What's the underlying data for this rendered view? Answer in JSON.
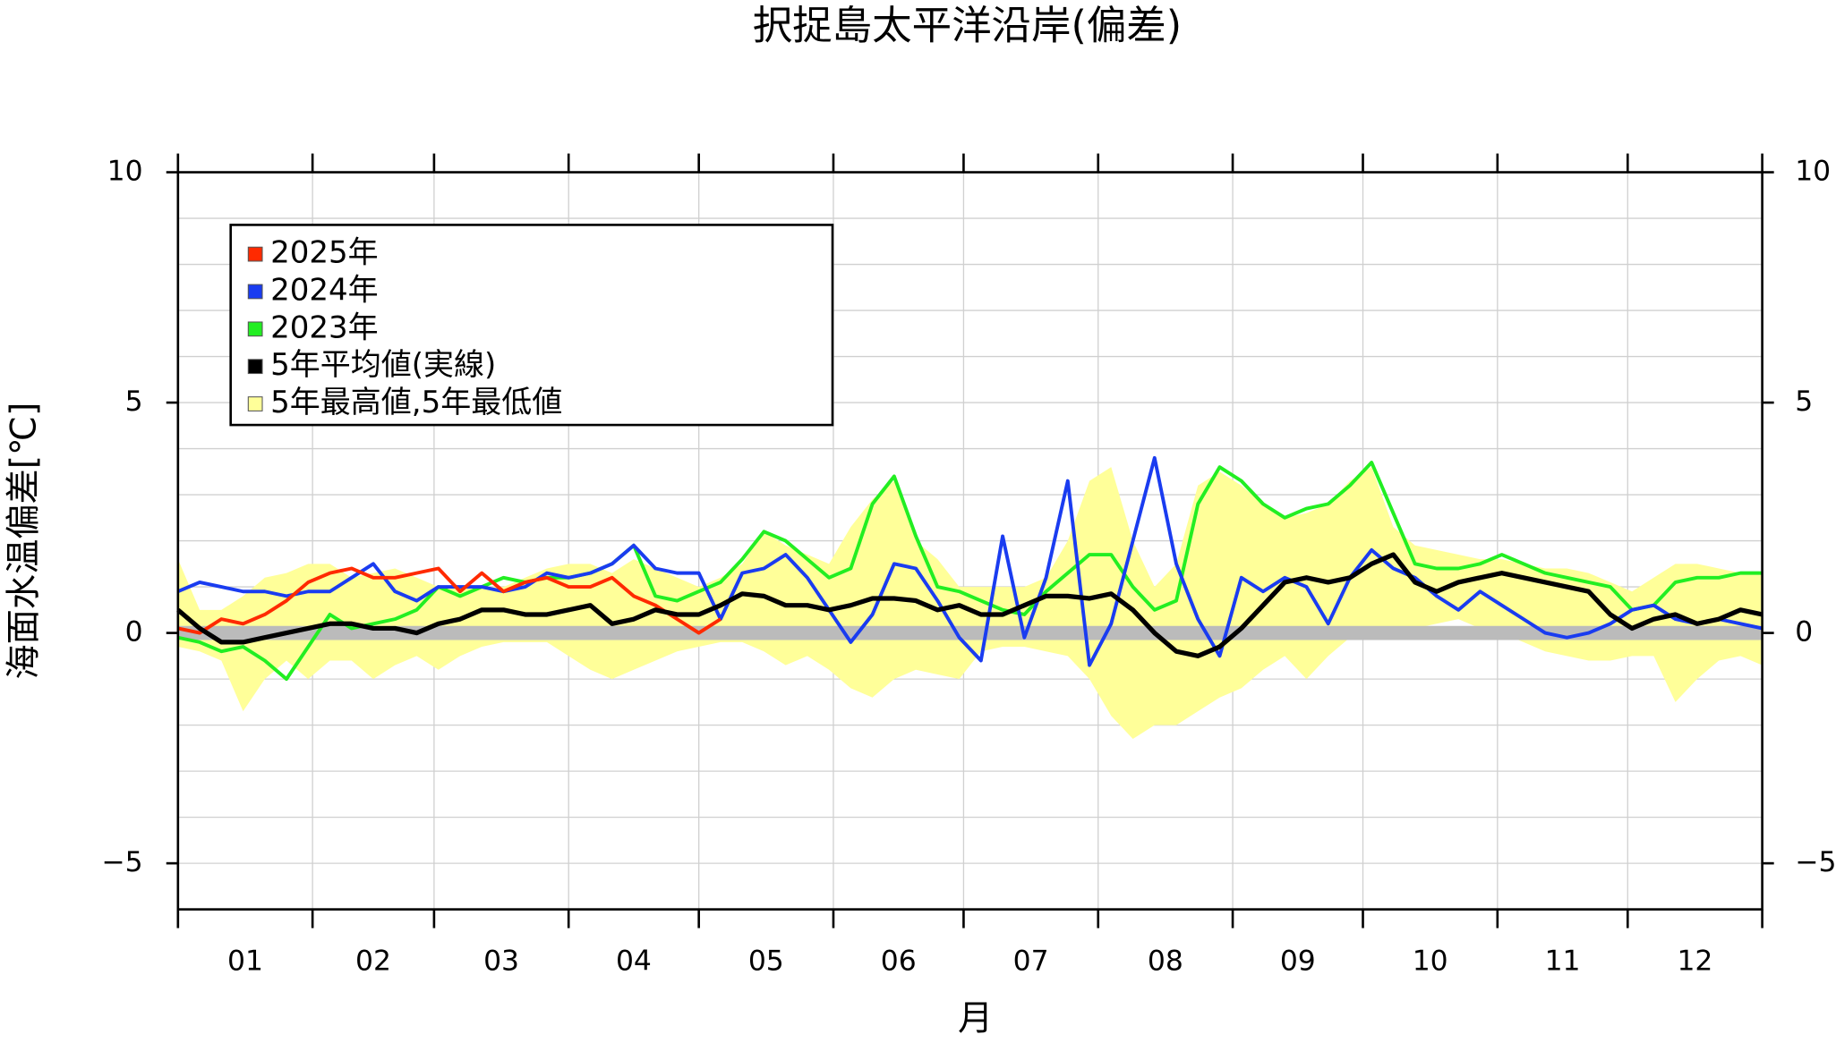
{
  "chart_data": {
    "type": "line",
    "title": "択捉島太平洋沿岸(偏差)",
    "ylabel": "海面水温偏差[℃]",
    "xlabel": "月",
    "categories": [
      "01",
      "02",
      "03",
      "04",
      "05",
      "06",
      "07",
      "08",
      "09",
      "10",
      "11",
      "12"
    ],
    "month_bounds": [
      0,
      31,
      59,
      90,
      120,
      151,
      181,
      212,
      243,
      273,
      304,
      334,
      365
    ],
    "xlim": [
      0,
      365
    ],
    "ylim": [
      -6,
      10
    ],
    "yticks": [
      {
        "value": -5,
        "label": "−5"
      },
      0,
      5,
      10
    ],
    "ygrid": [
      -5,
      -4,
      -3,
      -2,
      -1,
      0,
      1,
      2,
      3,
      4,
      5,
      6,
      7,
      8,
      9
    ],
    "grid": true,
    "zero_line": 0,
    "legend": "upper left",
    "x": [
      0,
      5,
      10,
      15,
      20,
      25,
      30,
      35,
      40,
      45,
      50,
      55,
      60,
      65,
      70,
      75,
      80,
      85,
      90,
      95,
      100,
      105,
      110,
      115,
      120,
      125,
      130,
      135,
      140,
      145,
      150,
      155,
      160,
      165,
      170,
      175,
      180,
      185,
      190,
      195,
      200,
      205,
      210,
      215,
      220,
      225,
      230,
      235,
      240,
      245,
      250,
      255,
      260,
      265,
      270,
      275,
      280,
      285,
      290,
      295,
      300,
      305,
      310,
      315,
      320,
      325,
      330,
      335,
      340,
      345,
      350,
      355,
      360,
      365
    ],
    "series": [
      {
        "name": "2025年",
        "color": "#ff2a00",
        "values": [
          0.1,
          0.0,
          0.3,
          0.2,
          0.4,
          0.7,
          1.1,
          1.3,
          1.4,
          1.2,
          1.2,
          1.3,
          1.4,
          0.9,
          1.3,
          0.9,
          1.1,
          1.2,
          1.0,
          1.0,
          1.2,
          0.8,
          0.6,
          0.3,
          0.0,
          0.3,
          null,
          null,
          null,
          null,
          null,
          null,
          null,
          null,
          null,
          null,
          null,
          null,
          null,
          null,
          null,
          null,
          null,
          null,
          null,
          null,
          null,
          null,
          null,
          null,
          null,
          null,
          null,
          null,
          null,
          null,
          null,
          null,
          null,
          null,
          null,
          null,
          null,
          null,
          null,
          null,
          null,
          null,
          null,
          null,
          null,
          null,
          null,
          null
        ]
      },
      {
        "name": "2024年",
        "color": "#1a3cf0",
        "values": [
          0.9,
          1.1,
          1.0,
          0.9,
          0.9,
          0.8,
          0.9,
          0.9,
          1.2,
          1.5,
          0.9,
          0.7,
          1.0,
          1.0,
          1.0,
          0.9,
          1.0,
          1.3,
          1.2,
          1.3,
          1.5,
          1.9,
          1.4,
          1.3,
          1.3,
          0.3,
          1.3,
          1.4,
          1.7,
          1.2,
          0.5,
          -0.2,
          0.4,
          1.5,
          1.4,
          0.7,
          -0.1,
          -0.6,
          2.1,
          -0.1,
          1.2,
          3.3,
          -0.7,
          0.2,
          2.0,
          3.8,
          1.5,
          0.3,
          -0.5,
          1.2,
          0.9,
          1.2,
          1.0,
          0.2,
          1.2,
          1.8,
          1.4,
          1.2,
          0.8,
          0.5,
          0.9,
          0.6,
          0.3,
          0.0,
          -0.1,
          0.0,
          0.2,
          0.5,
          0.6,
          0.3,
          0.2,
          0.3,
          0.2,
          0.1
        ]
      },
      {
        "name": "2023年",
        "color": "#22ee22",
        "values": [
          -0.1,
          -0.2,
          -0.4,
          -0.3,
          -0.6,
          -1.0,
          -0.3,
          0.4,
          0.1,
          0.2,
          0.3,
          0.5,
          1.0,
          0.8,
          1.0,
          1.2,
          1.1,
          1.2,
          1.2,
          1.3,
          1.5,
          1.9,
          0.8,
          0.7,
          0.9,
          1.1,
          1.6,
          2.2,
          2.0,
          1.6,
          1.2,
          1.4,
          2.8,
          3.4,
          2.1,
          1.0,
          0.9,
          0.7,
          0.5,
          0.4,
          0.9,
          1.3,
          1.7,
          1.7,
          1.0,
          0.5,
          0.7,
          2.8,
          3.6,
          3.3,
          2.8,
          2.5,
          2.7,
          2.8,
          3.2,
          3.7,
          2.6,
          1.5,
          1.4,
          1.4,
          1.5,
          1.7,
          1.5,
          1.3,
          1.2,
          1.1,
          1.0,
          0.5,
          0.6,
          1.1,
          1.2,
          1.2,
          1.3,
          1.3
        ]
      },
      {
        "name": "5年平均値(実線)",
        "color": "#000000",
        "values": [
          0.5,
          0.1,
          -0.2,
          -0.2,
          -0.1,
          0.0,
          0.1,
          0.2,
          0.2,
          0.1,
          0.1,
          0.0,
          0.2,
          0.3,
          0.5,
          0.5,
          0.4,
          0.4,
          0.5,
          0.6,
          0.2,
          0.3,
          0.5,
          0.4,
          0.4,
          0.6,
          0.85,
          0.8,
          0.6,
          0.6,
          0.5,
          0.6,
          0.75,
          0.75,
          0.7,
          0.5,
          0.6,
          0.4,
          0.4,
          0.6,
          0.8,
          0.8,
          0.75,
          0.85,
          0.5,
          0.0,
          -0.4,
          -0.5,
          -0.3,
          0.1,
          0.6,
          1.1,
          1.2,
          1.1,
          1.2,
          1.5,
          1.7,
          1.1,
          0.9,
          1.1,
          1.2,
          1.3,
          1.2,
          1.1,
          1.0,
          0.9,
          0.4,
          0.1,
          0.3,
          0.4,
          0.2,
          0.3,
          0.5,
          0.4
        ]
      }
    ],
    "band": {
      "name": "5年最高値,5年最低値",
      "color": "#ffff99",
      "upper": [
        1.6,
        0.5,
        0.5,
        0.8,
        1.2,
        1.3,
        1.5,
        1.5,
        1.2,
        1.3,
        1.4,
        1.2,
        1.0,
        1.0,
        1.0,
        1.0,
        1.2,
        1.4,
        1.5,
        1.5,
        1.3,
        1.6,
        1.4,
        1.2,
        1.0,
        1.2,
        1.5,
        2.2,
        1.9,
        1.7,
        1.5,
        2.3,
        2.9,
        3.3,
        2.0,
        1.6,
        1.0,
        1.0,
        1.0,
        1.0,
        1.2,
        2.0,
        3.3,
        3.6,
        2.0,
        1.0,
        1.5,
        3.2,
        3.5,
        3.2,
        2.8,
        2.5,
        2.6,
        2.8,
        3.3,
        3.6,
        2.3,
        1.9,
        1.8,
        1.7,
        1.6,
        1.6,
        1.5,
        1.4,
        1.4,
        1.3,
        1.1,
        0.9,
        1.2,
        1.5,
        1.5,
        1.4,
        1.3,
        1.3
      ],
      "lower": [
        -0.3,
        -0.4,
        -0.6,
        -1.7,
        -1.0,
        -0.6,
        -1.0,
        -0.6,
        -0.6,
        -1.0,
        -0.7,
        -0.5,
        -0.8,
        -0.5,
        -0.3,
        -0.2,
        -0.2,
        -0.2,
        -0.5,
        -0.8,
        -1.0,
        -0.8,
        -0.6,
        -0.4,
        -0.3,
        -0.2,
        -0.2,
        -0.4,
        -0.7,
        -0.5,
        -0.8,
        -1.2,
        -1.4,
        -1.0,
        -0.8,
        -0.9,
        -1.0,
        -0.4,
        -0.3,
        -0.3,
        -0.4,
        -0.5,
        -1.0,
        -1.8,
        -2.3,
        -2.0,
        -2.0,
        -1.7,
        -1.4,
        -1.2,
        -0.8,
        -0.5,
        -1.0,
        -0.5,
        -0.1,
        0.0,
        0.0,
        0.1,
        0.2,
        0.3,
        0.1,
        0.0,
        -0.2,
        -0.4,
        -0.5,
        -0.6,
        -0.6,
        -0.5,
        -0.5,
        -1.5,
        -1.0,
        -0.6,
        -0.5,
        -0.7
      ]
    }
  }
}
